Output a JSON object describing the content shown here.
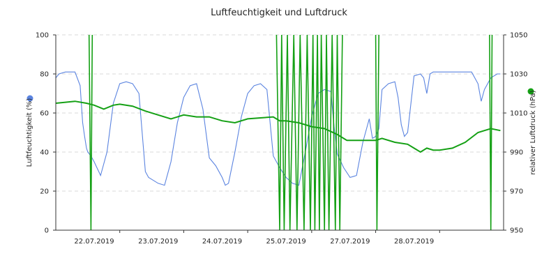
{
  "chart_data": {
    "type": "line",
    "title": "Luftfeuchtigkeit und Luftdruck",
    "x_tick_labels": [
      "22.07.2019",
      "23.07.2019",
      "24.07.2019",
      "25.07.2019",
      "27.07.2019",
      "28.07.2019"
    ],
    "left_axis": {
      "label": "Luftfeuchtigkeit (%)",
      "range": [
        0,
        100
      ],
      "ticks": [
        "0",
        "20",
        "40",
        "60",
        "80",
        "100"
      ],
      "color": "#5b84e0"
    },
    "right_axis": {
      "label": "relativer Luftdruck (hPa)",
      "range": [
        950,
        1050
      ],
      "ticks": [
        "950",
        "970",
        "990",
        "1010",
        "1030",
        "1050"
      ],
      "color": "#14a014"
    },
    "grid": "horizontal dashed",
    "x_range": [
      0,
      7
    ],
    "series": [
      {
        "axis": "left",
        "color": "#5b84e0",
        "x": [
          0.0,
          0.05,
          0.15,
          0.3,
          0.38,
          0.42,
          0.45,
          0.48,
          0.5,
          0.55,
          0.6,
          0.7,
          0.8,
          0.9,
          1.0,
          1.1,
          1.2,
          1.3,
          1.4,
          1.45,
          1.5,
          1.6,
          1.7,
          1.8,
          1.9,
          2.0,
          2.1,
          2.2,
          2.3,
          2.4,
          2.5,
          2.6,
          2.65,
          2.7,
          2.8,
          2.9,
          3.0,
          3.1,
          3.2,
          3.3,
          3.4,
          3.5,
          3.6,
          3.7,
          3.8,
          3.9,
          4.0,
          4.1,
          4.2,
          4.3,
          4.35,
          4.4,
          4.5,
          4.6,
          4.7,
          4.8,
          4.9,
          4.95,
          5.0,
          5.05,
          5.1,
          5.2,
          5.3,
          5.35,
          5.4,
          5.45,
          5.5,
          5.6,
          5.7,
          5.75,
          5.8,
          5.85,
          5.9,
          6.0,
          6.3,
          6.5,
          6.6,
          6.65,
          6.7,
          6.75,
          6.8,
          6.9,
          6.95
        ],
        "values": [
          78,
          80,
          81,
          81,
          74,
          55,
          48,
          42,
          40,
          38,
          35,
          28,
          40,
          65,
          75,
          76,
          75,
          70,
          30,
          27,
          26,
          24,
          23,
          35,
          55,
          68,
          74,
          75,
          62,
          37,
          33,
          27,
          23,
          24,
          40,
          58,
          70,
          74,
          75,
          72,
          38,
          32,
          27,
          24,
          23,
          40,
          58,
          70,
          72,
          71,
          53,
          39,
          32,
          27,
          28,
          45,
          57,
          47,
          48,
          52,
          72,
          75,
          76,
          68,
          54,
          48,
          50,
          79,
          80,
          78,
          70,
          80,
          81,
          81,
          81,
          81,
          75,
          66,
          72,
          75,
          78,
          80,
          80
        ]
      },
      {
        "axis": "right",
        "color": "#14a014",
        "x": [
          0.0,
          0.3,
          0.48,
          0.6,
          0.75,
          0.9,
          1.0,
          1.2,
          1.4,
          1.6,
          1.8,
          2.0,
          2.2,
          2.4,
          2.6,
          2.8,
          3.0,
          3.2,
          3.4,
          3.5,
          3.6,
          3.8,
          4.0,
          4.2,
          4.4,
          4.55,
          4.7,
          4.9,
          5.0,
          5.1,
          5.3,
          5.5,
          5.6,
          5.7,
          5.8,
          5.9,
          6.0,
          6.2,
          6.4,
          6.6,
          6.7,
          6.8,
          6.95
        ],
        "values": [
          1015,
          1016,
          1015,
          1014,
          1012,
          1014,
          1014.5,
          1013.5,
          1011,
          1009,
          1007,
          1009,
          1008,
          1008,
          1006,
          1005,
          1007,
          1007.5,
          1008,
          1006,
          1006,
          1005,
          1003,
          1002,
          999,
          996,
          996,
          996,
          996,
          997,
          995,
          994,
          992,
          990,
          992,
          991,
          991,
          992,
          995,
          1000,
          1001,
          1002,
          1001
        ]
      }
    ],
    "spikes": {
      "axis": "right",
      "color": "#14a014",
      "x": [
        0.52,
        0.55,
        0.57,
        3.45,
        3.5,
        3.53,
        3.57,
        3.62,
        3.66,
        3.72,
        3.77,
        3.82,
        3.88,
        3.93,
        3.98,
        4.02,
        4.05,
        4.09,
        4.12,
        4.15,
        4.2,
        4.23,
        4.27,
        4.32,
        4.37,
        4.4,
        4.44,
        4.48,
        5.0,
        5.02,
        5.05,
        6.78,
        6.8,
        6.82
      ],
      "values": [
        1050,
        950,
        1050,
        1050,
        950,
        1050,
        950,
        1050,
        950,
        1050,
        950,
        1050,
        950,
        1050,
        950,
        1050,
        950,
        1050,
        950,
        1050,
        950,
        1050,
        950,
        1050,
        950,
        1050,
        950,
        1050,
        1050,
        950,
        1050,
        1050,
        950,
        1050
      ]
    }
  }
}
